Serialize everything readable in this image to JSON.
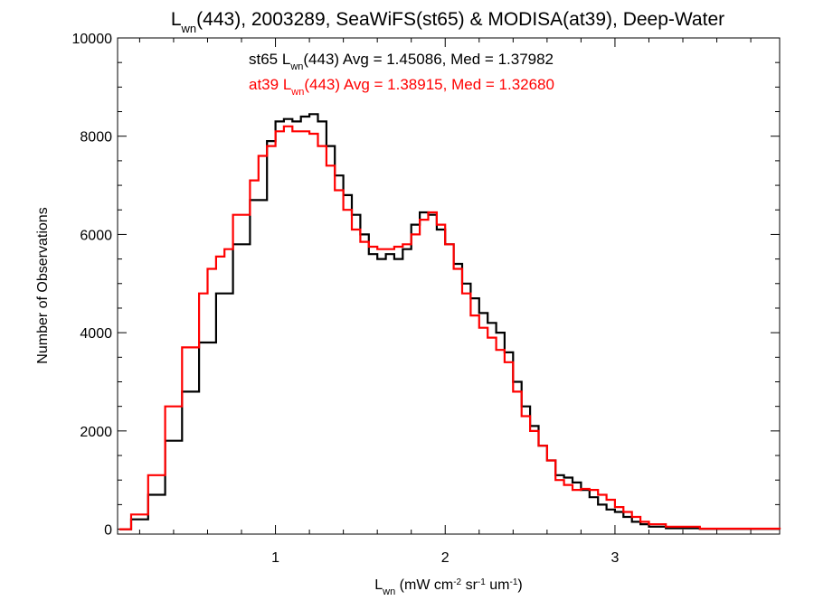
{
  "chart_data": {
    "type": "line",
    "step": true,
    "title": {
      "sym": "L",
      "sub": "wn",
      "rest": "(443), 2003289, SeaWiFS(st65) & MODISA(at39), Deep-Water"
    },
    "xlabel": {
      "sym": "L",
      "sub": "wn",
      "parts": [
        {
          "t": " (mW cm",
          "sup": false
        },
        {
          "t": "-2",
          "sup": true
        },
        {
          "t": " sr",
          "sup": false
        },
        {
          "t": "-1",
          "sup": true
        },
        {
          "t": " um",
          "sup": false
        },
        {
          "t": "-1",
          "sup": true
        },
        {
          "t": ")",
          "sup": false
        }
      ]
    },
    "ylabel": "Number of Observations",
    "xlim": [
      0.07,
      3.97
    ],
    "ylim": [
      -100,
      10000
    ],
    "xticks": [
      1,
      2,
      3
    ],
    "yticks": [
      0,
      2000,
      4000,
      6000,
      8000,
      10000
    ],
    "legend_position": "top-center",
    "series": [
      {
        "name": "st65",
        "color": "#000000",
        "label": {
          "pre": "st65 ",
          "sym": "L",
          "sub": "wn",
          "post": "(443) Avg = 1.45086, Med = 1.37982"
        },
        "x": [
          0.08,
          0.15,
          0.25,
          0.35,
          0.45,
          0.55,
          0.65,
          0.75,
          0.85,
          0.95,
          1.0,
          1.05,
          1.1,
          1.15,
          1.2,
          1.25,
          1.3,
          1.35,
          1.4,
          1.45,
          1.5,
          1.55,
          1.6,
          1.65,
          1.7,
          1.75,
          1.8,
          1.85,
          1.9,
          1.95,
          2.0,
          2.05,
          2.1,
          2.15,
          2.2,
          2.25,
          2.3,
          2.35,
          2.4,
          2.45,
          2.5,
          2.55,
          2.6,
          2.65,
          2.7,
          2.75,
          2.8,
          2.85,
          2.9,
          2.95,
          3.0,
          3.05,
          3.1,
          3.15,
          3.2,
          3.3,
          3.5,
          3.97
        ],
        "y": [
          0,
          200,
          700,
          1800,
          2800,
          3800,
          4800,
          5800,
          6700,
          7900,
          8300,
          8350,
          8300,
          8400,
          8450,
          8300,
          7800,
          7200,
          6800,
          6400,
          6000,
          5600,
          5500,
          5600,
          5500,
          5700,
          6200,
          6450,
          6400,
          6100,
          5800,
          5400,
          5000,
          4700,
          4400,
          4200,
          4000,
          3600,
          3000,
          2500,
          2100,
          1700,
          1400,
          1100,
          1050,
          950,
          800,
          650,
          500,
          400,
          350,
          250,
          150,
          100,
          50,
          20,
          5,
          0
        ]
      },
      {
        "name": "at39",
        "color": "#ff0000",
        "label": {
          "pre": "at39 ",
          "sym": "L",
          "sub": "wn",
          "post": "(443) Avg = 1.38915, Med = 1.32680"
        },
        "x": [
          0.08,
          0.15,
          0.25,
          0.35,
          0.45,
          0.55,
          0.6,
          0.65,
          0.7,
          0.75,
          0.85,
          0.9,
          0.95,
          1.0,
          1.05,
          1.1,
          1.15,
          1.2,
          1.25,
          1.3,
          1.35,
          1.4,
          1.45,
          1.5,
          1.55,
          1.6,
          1.65,
          1.7,
          1.75,
          1.8,
          1.85,
          1.9,
          1.95,
          2.0,
          2.05,
          2.1,
          2.15,
          2.2,
          2.25,
          2.3,
          2.35,
          2.4,
          2.45,
          2.5,
          2.55,
          2.6,
          2.65,
          2.7,
          2.75,
          2.8,
          2.85,
          2.9,
          2.95,
          3.0,
          3.05,
          3.1,
          3.15,
          3.2,
          3.3,
          3.5,
          3.97
        ],
        "y": [
          0,
          300,
          1100,
          2500,
          3700,
          4800,
          5300,
          5550,
          5700,
          6400,
          7100,
          7600,
          7800,
          8100,
          8200,
          8100,
          8100,
          8050,
          7800,
          7400,
          6900,
          6500,
          6100,
          5850,
          5750,
          5700,
          5700,
          5750,
          5800,
          6000,
          6300,
          6450,
          6200,
          5800,
          5300,
          4800,
          4350,
          4100,
          3900,
          3650,
          3400,
          2800,
          2300,
          2000,
          1700,
          1400,
          1000,
          900,
          800,
          820,
          800,
          700,
          600,
          450,
          350,
          250,
          150,
          100,
          50,
          10,
          0
        ]
      }
    ]
  }
}
